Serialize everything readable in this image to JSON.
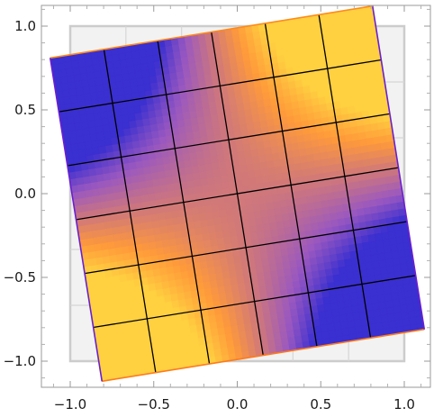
{
  "chart_data": {
    "type": "heatmap",
    "title": "",
    "xlabel": "",
    "ylabel": "",
    "xlim": [
      -1.15,
      1.15
    ],
    "ylim": [
      -1.15,
      1.15
    ],
    "x_ticks": [
      -1.0,
      -0.5,
      0.0,
      0.5,
      1.0
    ],
    "y_ticks": [
      -1.0,
      -0.5,
      0.0,
      0.5,
      1.0
    ],
    "x_tick_labels": [
      "−1.0",
      "−0.5",
      "0.0",
      "0.5",
      "1.0"
    ],
    "y_tick_labels": [
      "−1.0",
      "−0.5",
      "0.0",
      "0.5",
      "1.0"
    ],
    "reference_square": {
      "corners": [
        [
          -1.0,
          -1.0
        ],
        [
          1.0,
          -1.0
        ],
        [
          1.0,
          1.0
        ],
        [
          -1.0,
          1.0
        ]
      ],
      "grid_divisions": 6,
      "color": "#cccccc"
    },
    "transformed_square": {
      "rotation_deg": 10,
      "scale": 1.0,
      "corners": [
        [
          -0.81,
          -1.12
        ],
        [
          1.12,
          -0.81
        ],
        [
          0.81,
          1.12
        ],
        [
          -1.12,
          0.81
        ]
      ],
      "grid_divisions": 6,
      "grid_color": "#000000",
      "edge_colors": [
        "#ff7a1a",
        "#6a1fd0",
        "#ff8a1a",
        "#6a1fd0"
      ],
      "color_scale": {
        "low": "#3a2fd0",
        "mid_low": "#9a58c0",
        "mid": "#d0787a",
        "mid_high": "#ff9a3a",
        "high": "#ffd040"
      },
      "corner_values": {
        "bottom_left": 1.0,
        "bottom_right": 0.0,
        "top_right": 1.0,
        "top_left": 0.0
      }
    },
    "frame": true
  }
}
